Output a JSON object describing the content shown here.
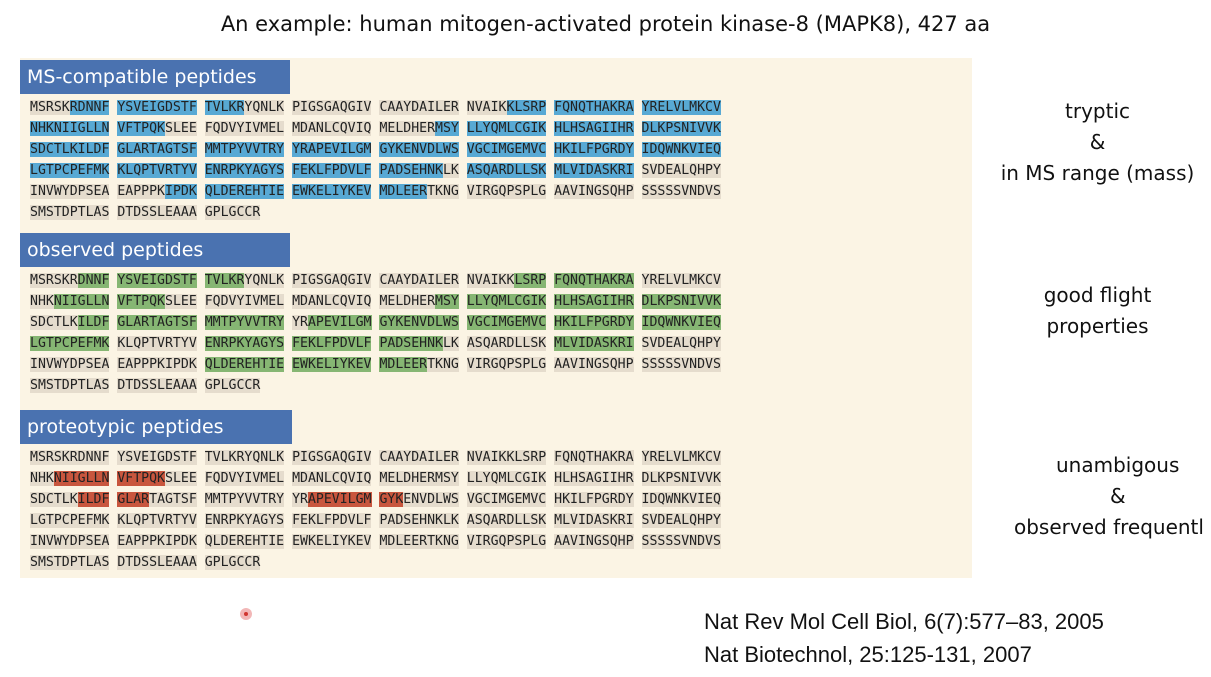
{
  "title": "An example: human mitogen-activated protein kinase-8 (MAPK8), 427 aa",
  "blocks": [
    {
      "header": "MS-compatible peptides",
      "side_lines": [
        "tryptic",
        "&",
        "in MS range (mass)"
      ],
      "lines": [
        [
          [
            "MSRSK",
            ""
          ],
          [
            "RDNNF",
            "b"
          ],
          [
            " ",
            ""
          ],
          [
            "YSVEIGDSTF",
            "b"
          ],
          [
            " ",
            ""
          ],
          [
            "TVLKR",
            "b"
          ],
          [
            "YQNLK",
            ""
          ],
          [
            " PIGSGAQGIV CAAYDAILER NVAIK",
            ""
          ],
          [
            "KLSRP",
            "b"
          ],
          [
            " ",
            ""
          ],
          [
            "FQNQTHAKRA",
            "b"
          ],
          [
            " ",
            ""
          ],
          [
            "YRELVLMKCV",
            "b"
          ]
        ],
        [
          [
            "NHKNIIGLLN",
            "b"
          ],
          [
            " ",
            ""
          ],
          [
            "VFTPQK",
            "b"
          ],
          [
            "SLEE FQDVYIVMEL MDANLCQVIQ MELDHER",
            ""
          ],
          [
            "MSY",
            "b"
          ],
          [
            " ",
            ""
          ],
          [
            "LLYQMLCGIK",
            "b"
          ],
          [
            " ",
            ""
          ],
          [
            "HLHSAGIIHR",
            "b"
          ],
          [
            " ",
            ""
          ],
          [
            "DLKPSNIVVK",
            "b"
          ]
        ],
        [
          [
            "SDCTLKILDF",
            "b"
          ],
          [
            " ",
            ""
          ],
          [
            "GLARTAGTSF",
            "b"
          ],
          [
            " ",
            ""
          ],
          [
            "MMTPYVVTRY",
            "b"
          ],
          [
            " ",
            ""
          ],
          [
            "YRAPEVILGM",
            "b"
          ],
          [
            " ",
            ""
          ],
          [
            "GYKENVDLWS",
            "b"
          ],
          [
            " ",
            ""
          ],
          [
            "VGCIMGEMVC",
            "b"
          ],
          [
            " ",
            ""
          ],
          [
            "HKILFPGRDY",
            "b"
          ],
          [
            " ",
            ""
          ],
          [
            "IDQWNKVIEQ",
            "b"
          ]
        ],
        [
          [
            "LGTPCPEFMK",
            "b"
          ],
          [
            " ",
            ""
          ],
          [
            "KLQPTVRTYV",
            "b"
          ],
          [
            " ",
            ""
          ],
          [
            "ENRPKYAGYS",
            "b"
          ],
          [
            " ",
            ""
          ],
          [
            "FEKLFPDVLF",
            "b"
          ],
          [
            " ",
            ""
          ],
          [
            "PADSEHNK",
            "b"
          ],
          [
            "LK ",
            ""
          ],
          [
            "ASQARDLLSK",
            "b"
          ],
          [
            " ",
            ""
          ],
          [
            "MLVIDASKRI",
            "b"
          ],
          [
            " SVDEALQHPY",
            ""
          ]
        ],
        [
          [
            "INVWYDPSEA EAPPPK",
            ""
          ],
          [
            "IPDK",
            "b"
          ],
          [
            " ",
            ""
          ],
          [
            "QLDEREHTIE",
            "b"
          ],
          [
            " ",
            ""
          ],
          [
            "EWKELIYKEV",
            "b"
          ],
          [
            " ",
            ""
          ],
          [
            "MDLEER",
            "b"
          ],
          [
            "TKNG VIRGQPSPLG AAVINGSQHP SSSSSVNDVS",
            ""
          ]
        ],
        [
          [
            "SMSTDPTLAS DTDSSLEAAA GPLGCCR",
            ""
          ]
        ]
      ]
    },
    {
      "header": "observed peptides",
      "side_lines": [
        "good flight",
        "properties"
      ],
      "lines": [
        [
          [
            "MSRSKR",
            ""
          ],
          [
            "DNNF",
            "g"
          ],
          [
            " ",
            ""
          ],
          [
            "YSVEIGDSTF",
            "g"
          ],
          [
            " ",
            ""
          ],
          [
            "TVLKR",
            "g"
          ],
          [
            "YQNLK PIGSGAQGIV CAAYDAILER NVAIKK",
            ""
          ],
          [
            "LSRP",
            "g"
          ],
          [
            " ",
            ""
          ],
          [
            "FQNQTHAKRA",
            "g"
          ],
          [
            " YRELVLMKCV",
            ""
          ]
        ],
        [
          [
            "NHK",
            ""
          ],
          [
            "NIIGLLN",
            "g"
          ],
          [
            " ",
            ""
          ],
          [
            "VFTPQK",
            "g"
          ],
          [
            "SLEE FQDVYIVMEL MDANLCQVIQ MELDHER",
            ""
          ],
          [
            "MSY",
            "g"
          ],
          [
            " ",
            ""
          ],
          [
            "LLYQMLCGIK",
            "g"
          ],
          [
            " ",
            ""
          ],
          [
            "HLHSAGIIHR",
            "g"
          ],
          [
            " ",
            ""
          ],
          [
            "DLKPSNIVVK",
            "g"
          ]
        ],
        [
          [
            "SDCTLK",
            ""
          ],
          [
            "ILDF",
            "g"
          ],
          [
            " ",
            ""
          ],
          [
            "GLARTAGTSF",
            "g"
          ],
          [
            " ",
            ""
          ],
          [
            "MMTPYVVTRY",
            "g"
          ],
          [
            " YR",
            ""
          ],
          [
            "APEVILGM",
            "g"
          ],
          [
            " ",
            ""
          ],
          [
            "GYKENVDLWS",
            "g"
          ],
          [
            " ",
            ""
          ],
          [
            "VGCIMGEMVC",
            "g"
          ],
          [
            " ",
            ""
          ],
          [
            "HKILFPGRDY",
            "g"
          ],
          [
            " ",
            ""
          ],
          [
            "IDQWNKVIEQ",
            "g"
          ]
        ],
        [
          [
            "LGTPCPEFMK",
            "g"
          ],
          [
            " KLQPTVRTYV ",
            ""
          ],
          [
            "ENRPKYAGYS",
            "g"
          ],
          [
            " ",
            ""
          ],
          [
            "FEKLFPDVLF",
            "g"
          ],
          [
            " ",
            ""
          ],
          [
            "PADSEHNK",
            "g"
          ],
          [
            "LK ASQARDLLSK ",
            ""
          ],
          [
            "MLVIDASKRI",
            "g"
          ],
          [
            " SVDEALQHPY",
            ""
          ]
        ],
        [
          [
            "INVWYDPSEA EAPPPKIPDK ",
            ""
          ],
          [
            "QLDEREHTIE",
            "g"
          ],
          [
            " ",
            ""
          ],
          [
            "EWKELIYKEV",
            "g"
          ],
          [
            " ",
            ""
          ],
          [
            "MDLEER",
            "g"
          ],
          [
            "TKNG VIRGQPSPLG AAVINGSQHP SSSSSVNDVS",
            ""
          ]
        ],
        [
          [
            "SMSTDPTLAS DTDSSLEAAA GPLGCCR",
            ""
          ]
        ]
      ]
    },
    {
      "header": "proteotypic peptides",
      "side_lines": [
        "unambigous",
        "&",
        "observed frequentl"
      ],
      "lines": [
        [
          [
            "MSRSKRDNNF YSVEIGDSTF TVLKRYQNLK PIGSGAQGIV CAAYDAILER NVAIKKLSRP FQNQTHAKRA YRELVLMKCV",
            ""
          ]
        ],
        [
          [
            "NHK",
            ""
          ],
          [
            "NIIGLLN",
            "r"
          ],
          [
            " ",
            ""
          ],
          [
            "VFTPQK",
            "r"
          ],
          [
            "SLEE FQDVYIVMEL MDANLCQVIQ MELDHERMSY LLYQMLCGIK HLHSAGIIHR DLKPSNIVVK",
            ""
          ]
        ],
        [
          [
            "SDCTLK",
            ""
          ],
          [
            "ILDF",
            "r"
          ],
          [
            " ",
            ""
          ],
          [
            "GLAR",
            "r"
          ],
          [
            "TAGTSF MMTPYVVTRY YR",
            ""
          ],
          [
            "APEVILGM",
            "r"
          ],
          [
            " ",
            ""
          ],
          [
            "GYK",
            "r"
          ],
          [
            "ENVDLWS VGCIMGEMVC HKILFPGRDY IDQWNKVIEQ",
            ""
          ]
        ],
        [
          [
            "LGTPCPEFMK KLQPTVRTYV ENRPKYAGYS FEKLFPDVLF PADSEHNKLK ASQARDLLSK MLVIDASKRI SVDEALQHPY",
            ""
          ]
        ],
        [
          [
            "INVWYDPSEA EAPPPKIPDK QLDEREHTIE EWKELIYKEV MDLEERTKNG VIRGQPSPLG AAVINGSQHP SSSSSVNDVS",
            ""
          ]
        ],
        [
          [
            "SMSTDPTLAS DTDSSLEAAA GPLGCCR",
            ""
          ]
        ]
      ]
    }
  ],
  "references": [
    "Nat Rev Mol Cell Biol, 6(7):577–83, 2005",
    "Nat Biotechnol, 25:125-131, 2007"
  ],
  "colors": {
    "header": "#4a72b0",
    "ms_highlight": "#58a9d4",
    "observed_highlight": "#86b673",
    "proteotypic_highlight": "#c8563e",
    "panel": "#fbf4e4"
  }
}
